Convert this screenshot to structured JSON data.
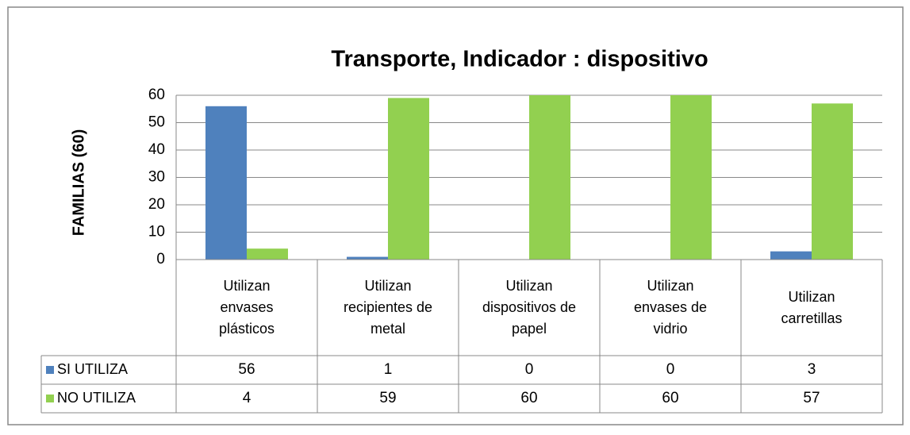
{
  "chart_data": {
    "type": "bar",
    "title": "Transporte,  Indicador :  dispositivo",
    "y_label": "FAMILIAS (60)",
    "categories": [
      "Utilizan envases plásticos",
      "Utilizan recipientes de metal",
      "Utilizan dispositivos de papel",
      "Utilizan envases de vidrio",
      "Utilizan carretillas"
    ],
    "series": [
      {
        "name": "SI UTILIZA",
        "color": "#4f81bd",
        "values": [
          56,
          1,
          0,
          0,
          3
        ]
      },
      {
        "name": "NO UTILIZA",
        "color": "#92d050",
        "values": [
          4,
          59,
          60,
          60,
          57
        ]
      }
    ],
    "ylim": [
      0,
      60
    ],
    "yticks": [
      0,
      10,
      20,
      30,
      40,
      50,
      60
    ],
    "grid": true,
    "data_table": true
  }
}
